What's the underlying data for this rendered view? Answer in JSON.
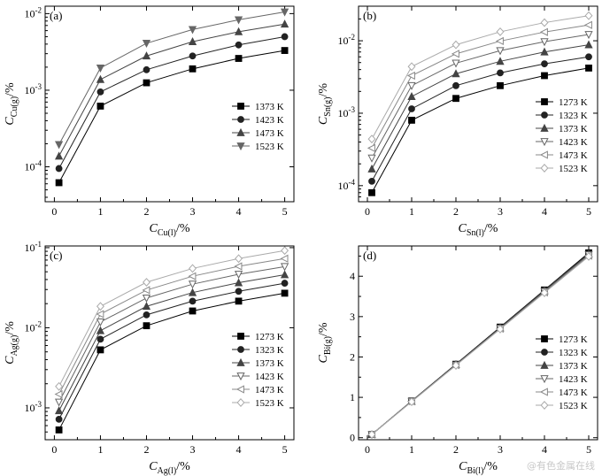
{
  "watermark": "@有色金属在线",
  "chart_data": [
    {
      "type": "line",
      "panel": "(a)",
      "x": [
        0.1,
        1,
        2,
        3,
        4,
        5
      ],
      "xlabel": {
        "main": "C",
        "sub": "Cu(l)",
        "unit": "/%"
      },
      "ylabel": {
        "main": "C",
        "sub": "Cu(g)",
        "unit": "/%"
      },
      "xlim": [
        -0.2,
        5.2
      ],
      "ylim": [
        3.5e-05,
        0.0125
      ],
      "yscale": "log",
      "xticks": [
        "0",
        "1",
        "2",
        "3",
        "4",
        "5"
      ],
      "yticks": [
        {
          "v": 0.0001,
          "base": "10",
          "exp": "-4"
        },
        {
          "v": 0.001,
          "base": "10",
          "exp": "-3"
        },
        {
          "v": 0.01,
          "base": "10",
          "exp": "-2"
        }
      ],
      "legend_position": "right",
      "series": [
        {
          "name": "1373 K",
          "marker": "square",
          "values": [
            6.2e-05,
            0.00062,
            0.00125,
            0.0019,
            0.0026,
            0.0033
          ]
        },
        {
          "name": "1423 K",
          "marker": "circle",
          "values": [
            9.5e-05,
            0.00095,
            0.00185,
            0.0028,
            0.0039,
            0.005
          ]
        },
        {
          "name": "1473 K",
          "marker": "triangle-up",
          "values": [
            0.000138,
            0.00138,
            0.0028,
            0.0043,
            0.0058,
            0.0073
          ]
        },
        {
          "name": "1523 K",
          "marker": "triangle-down",
          "values": [
            0.000195,
            0.00195,
            0.0041,
            0.0062,
            0.0083,
            0.0105
          ]
        }
      ]
    },
    {
      "type": "line",
      "panel": "(b)",
      "x": [
        0.1,
        1,
        2,
        3,
        4,
        5
      ],
      "xlabel": {
        "main": "C",
        "sub": "Sn(l)",
        "unit": "/%"
      },
      "ylabel": {
        "main": "C",
        "sub": "Sn(g)",
        "unit": "/%"
      },
      "xlim": [
        -0.2,
        5.2
      ],
      "ylim": [
        6e-05,
        0.03
      ],
      "yscale": "log",
      "xticks": [
        "0",
        "1",
        "2",
        "3",
        "4",
        "5"
      ],
      "yticks": [
        {
          "v": 0.0001,
          "base": "10",
          "exp": "-4"
        },
        {
          "v": 0.001,
          "base": "10",
          "exp": "-3"
        },
        {
          "v": 0.01,
          "base": "10",
          "exp": "-2"
        }
      ],
      "legend_position": "right",
      "series": [
        {
          "name": "1273 K",
          "marker": "square",
          "values": [
            8e-05,
            0.0008,
            0.0016,
            0.0024,
            0.0033,
            0.0042
          ]
        },
        {
          "name": "1323 K",
          "marker": "circle",
          "values": [
            0.000115,
            0.00115,
            0.0024,
            0.0036,
            0.0048,
            0.006
          ]
        },
        {
          "name": "1373 K",
          "marker": "triangle-up",
          "values": [
            0.00017,
            0.0017,
            0.0035,
            0.0052,
            0.007,
            0.0088
          ]
        },
        {
          "name": "1423 K",
          "marker": "triangle-down-open",
          "values": [
            0.00024,
            0.0024,
            0.0049,
            0.0073,
            0.0097,
            0.0122
          ]
        },
        {
          "name": "1473 K",
          "marker": "triangle-left-open",
          "values": [
            0.00033,
            0.0033,
            0.0066,
            0.0099,
            0.0132,
            0.0165
          ]
        },
        {
          "name": "1523 K",
          "marker": "diamond-open",
          "values": [
            0.00044,
            0.0044,
            0.0088,
            0.0133,
            0.0178,
            0.0222
          ]
        }
      ]
    },
    {
      "type": "line",
      "panel": "(c)",
      "x": [
        0.1,
        1,
        2,
        3,
        4,
        5
      ],
      "xlabel": {
        "main": "C",
        "sub": "Ag(l)",
        "unit": "/%"
      },
      "ylabel": {
        "main": "C",
        "sub": "Ag(g)",
        "unit": "/%"
      },
      "xlim": [
        -0.2,
        5.2
      ],
      "ylim": [
        0.0004,
        0.105
      ],
      "yscale": "log",
      "xticks": [
        "0",
        "1",
        "2",
        "3",
        "4",
        "5"
      ],
      "yticks": [
        {
          "v": 0.001,
          "base": "10",
          "exp": "-3"
        },
        {
          "v": 0.01,
          "base": "10",
          "exp": "-2"
        },
        {
          "v": 0.1,
          "base": "10",
          "exp": "-1"
        }
      ],
      "legend_position": "right",
      "series": [
        {
          "name": "1273 K",
          "marker": "square",
          "values": [
            0.00053,
            0.0053,
            0.0106,
            0.0162,
            0.0215,
            0.027
          ]
        },
        {
          "name": "1323 K",
          "marker": "circle",
          "values": [
            0.00072,
            0.0072,
            0.0145,
            0.0215,
            0.0285,
            0.036
          ]
        },
        {
          "name": "1373 K",
          "marker": "triangle-up",
          "values": [
            0.00092,
            0.0092,
            0.0185,
            0.0275,
            0.0365,
            0.046
          ]
        },
        {
          "name": "1423 K",
          "marker": "triangle-down-open",
          "values": [
            0.00118,
            0.0118,
            0.0235,
            0.035,
            0.0465,
            0.058
          ]
        },
        {
          "name": "1473 K",
          "marker": "triangle-left-open",
          "values": [
            0.00148,
            0.0148,
            0.0295,
            0.044,
            0.0585,
            0.073
          ]
        },
        {
          "name": "1523 K",
          "marker": "diamond-open",
          "values": [
            0.00185,
            0.0185,
            0.037,
            0.055,
            0.073,
            0.092
          ]
        }
      ]
    },
    {
      "type": "line",
      "panel": "(d)",
      "x": [
        0.1,
        1,
        2,
        3,
        4,
        5
      ],
      "xlabel": {
        "main": "C",
        "sub": "Bi(l)",
        "unit": "/%"
      },
      "ylabel": {
        "main": "C",
        "sub": "Bi(g)",
        "unit": "/%"
      },
      "xlim": [
        -0.2,
        5.2
      ],
      "ylim": [
        -0.05,
        4.75
      ],
      "yscale": "linear",
      "xticks": [
        "0",
        "1",
        "2",
        "3",
        "4",
        "5"
      ],
      "yticks": [
        {
          "v": 0,
          "label": "0"
        },
        {
          "v": 1,
          "label": "1"
        },
        {
          "v": 2,
          "label": "2"
        },
        {
          "v": 3,
          "label": "3"
        },
        {
          "v": 4,
          "label": "4"
        }
      ],
      "legend_position": "bottom-right",
      "series": [
        {
          "name": "1273 K",
          "marker": "square",
          "values": [
            0.08,
            0.91,
            1.82,
            2.74,
            3.66,
            4.58
          ]
        },
        {
          "name": "1323 K",
          "marker": "circle",
          "values": [
            0.08,
            0.91,
            1.82,
            2.73,
            3.65,
            4.56
          ]
        },
        {
          "name": "1373 K",
          "marker": "triangle-up",
          "values": [
            0.08,
            0.9,
            1.81,
            2.72,
            3.64,
            4.55
          ]
        },
        {
          "name": "1423 K",
          "marker": "triangle-down-open",
          "values": [
            0.08,
            0.9,
            1.8,
            2.71,
            3.62,
            4.53
          ]
        },
        {
          "name": "1473 K",
          "marker": "triangle-left-open",
          "values": [
            0.08,
            0.9,
            1.8,
            2.7,
            3.6,
            4.51
          ]
        },
        {
          "name": "1523 K",
          "marker": "diamond-open",
          "values": [
            0.08,
            0.89,
            1.79,
            2.69,
            3.59,
            4.49
          ]
        }
      ]
    }
  ]
}
